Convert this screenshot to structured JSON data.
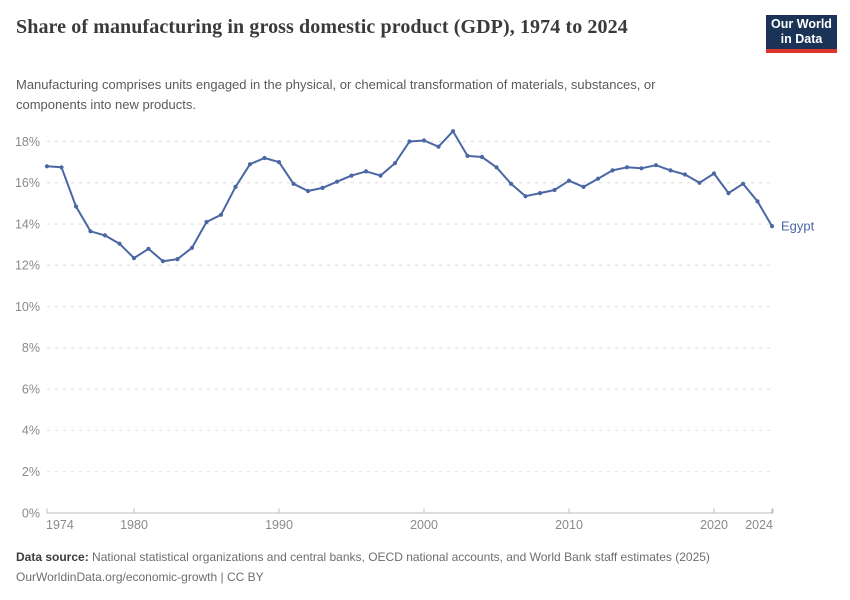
{
  "title": "Share of manufacturing in gross domestic product (GDP), 1974 to 2024",
  "subtitle": "Manufacturing comprises units engaged in the physical, or chemical transformation of materials, substances, or components into new products.",
  "logo": {
    "line1": "Our World",
    "line2": "in Data"
  },
  "entity_label": "Egypt",
  "chart_data": {
    "type": "line",
    "title": "Share of manufacturing in gross domestic product (GDP), 1974 to 2024",
    "xlabel": "",
    "ylabel": "",
    "unit": "%",
    "ylim": [
      0,
      18
    ],
    "yticks": [
      0,
      2,
      4,
      6,
      8,
      10,
      12,
      14,
      16,
      18
    ],
    "xticks": [
      1974,
      1980,
      1990,
      2000,
      2010,
      2020,
      2024
    ],
    "grid": true,
    "legend_position": "end-of-line",
    "x": [
      1974,
      1975,
      1976,
      1977,
      1978,
      1979,
      1980,
      1981,
      1982,
      1983,
      1984,
      1985,
      1986,
      1987,
      1988,
      1989,
      1990,
      1991,
      1992,
      1993,
      1994,
      1995,
      1996,
      1997,
      1998,
      1999,
      2000,
      2001,
      2002,
      2003,
      2004,
      2005,
      2006,
      2007,
      2008,
      2009,
      2010,
      2011,
      2012,
      2013,
      2014,
      2015,
      2016,
      2017,
      2018,
      2019,
      2020,
      2021,
      2022,
      2023,
      2024
    ],
    "series": [
      {
        "name": "Egypt",
        "color": "#4a67a3",
        "values": [
          16.8,
          16.75,
          14.85,
          13.65,
          13.45,
          13.05,
          12.35,
          12.8,
          12.2,
          12.3,
          12.85,
          14.1,
          14.45,
          15.8,
          16.9,
          17.2,
          17.0,
          15.95,
          15.6,
          15.75,
          16.05,
          16.35,
          16.55,
          16.35,
          16.95,
          18.0,
          18.05,
          17.75,
          18.5,
          17.3,
          17.25,
          16.75,
          15.95,
          15.35,
          15.5,
          15.65,
          16.1,
          15.8,
          16.2,
          16.6,
          16.75,
          16.7,
          16.85,
          16.6,
          16.4,
          16.0,
          16.45,
          15.5,
          15.95,
          15.1,
          13.9
        ]
      }
    ]
  },
  "footer": {
    "source_label": "Data source:",
    "source_text": " National statistical organizations and central banks, OECD national accounts, and World Bank staff estimates (2025)",
    "link_text": "OurWorldinData.org/economic-growth",
    "separator": " | ",
    "license_text": "CC BY"
  },
  "colors": {
    "line": "#4a67a3",
    "entity_label": "#4a67a3",
    "gridline": "#dedede",
    "axis": "#bdbdbd",
    "tick_text": "#8a8a8a",
    "logo_bg": "#1b3357",
    "logo_accent": "#dd352e",
    "title_text": "#3a3a3a",
    "subtitle_text": "#5a5a5a"
  }
}
